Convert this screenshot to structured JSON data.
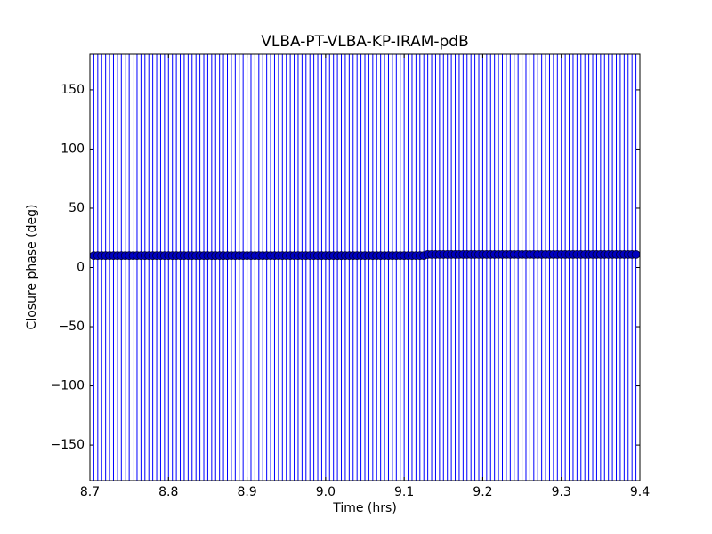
{
  "chart_data": {
    "type": "errorbar",
    "title": "VLBA-PT-VLBA-KP-IRAM-pdB",
    "xlabel": "Time (hrs)",
    "ylabel": "Closure phase (deg)",
    "color": "#0000ff",
    "marker_color": "#0000bf",
    "xlim": [
      8.7,
      9.4
    ],
    "ylim": [
      -180,
      180
    ],
    "xticks": [
      8.7,
      8.8,
      8.9,
      {
        "value": 9,
        "label": "9.0"
      },
      9.1,
      9.2,
      9.3,
      9.4
    ],
    "yticks": [
      {
        "value": -150,
        "label": "−150"
      },
      {
        "value": -100,
        "label": "−100"
      },
      {
        "value": -50,
        "label": "−50"
      },
      0,
      50,
      100,
      150
    ],
    "yerr": 200,
    "x": [
      8.705,
      8.71,
      8.715,
      8.72,
      8.725,
      8.73,
      8.735,
      8.74,
      8.745,
      8.75,
      8.755,
      8.76,
      8.765,
      8.77,
      8.775,
      8.78,
      8.785,
      8.79,
      8.795,
      8.8,
      8.805,
      8.81,
      8.815,
      8.82,
      8.825,
      8.83,
      8.835,
      8.84,
      8.845,
      8.85,
      8.855,
      8.86,
      8.865,
      8.87,
      8.875,
      8.88,
      8.885,
      8.89,
      8.895,
      8.9,
      8.905,
      8.91,
      8.915,
      8.92,
      8.925,
      8.93,
      8.935,
      8.94,
      8.945,
      8.95,
      8.955,
      8.96,
      8.965,
      8.97,
      8.975,
      8.98,
      8.985,
      8.99,
      8.995,
      9.0,
      9.005,
      9.01,
      9.015,
      9.02,
      9.025,
      9.03,
      9.035,
      9.04,
      9.045,
      9.05,
      9.055,
      9.06,
      9.065,
      9.07,
      9.075,
      9.08,
      9.085,
      9.09,
      9.095,
      9.1,
      9.105,
      9.11,
      9.115,
      9.12,
      9.125,
      9.13,
      9.135,
      9.14,
      9.145,
      9.15,
      9.155,
      9.16,
      9.165,
      9.17,
      9.175,
      9.18,
      9.185,
      9.19,
      9.195,
      9.2,
      9.205,
      9.21,
      9.215,
      9.22,
      9.225,
      9.23,
      9.235,
      9.24,
      9.245,
      9.25,
      9.255,
      9.26,
      9.265,
      9.27,
      9.275,
      9.28,
      9.285,
      9.29,
      9.295,
      9.3,
      9.305,
      9.31,
      9.315,
      9.32,
      9.325,
      9.33,
      9.335,
      9.34,
      9.345,
      9.35,
      9.355,
      9.36,
      9.365,
      9.37,
      9.375,
      9.38,
      9.385,
      9.39,
      9.395
    ],
    "values": [
      10,
      10,
      10,
      10,
      10,
      10,
      10,
      10,
      10,
      10,
      10,
      10,
      10,
      10,
      10,
      10,
      10,
      10,
      10,
      10,
      10,
      10,
      10,
      10,
      10,
      10,
      10,
      10,
      10,
      10,
      10,
      10,
      10,
      10,
      10,
      10,
      10,
      10,
      10,
      10,
      10,
      10,
      10,
      10,
      10,
      10,
      10,
      10,
      10,
      10,
      10,
      10,
      10,
      10,
      10,
      10,
      10,
      10,
      10,
      10,
      10,
      10,
      10,
      10,
      10,
      10,
      10,
      10,
      10,
      10,
      10,
      10,
      10,
      10,
      10,
      10,
      10,
      10,
      10,
      10,
      10,
      10,
      10,
      10,
      10,
      11,
      11,
      11,
      11,
      11,
      11,
      11,
      11,
      11,
      11,
      11,
      11,
      11,
      11,
      11,
      11,
      11,
      11,
      11,
      11,
      11,
      11,
      11,
      11,
      11,
      11,
      11,
      11,
      11,
      11,
      11,
      11,
      11,
      11,
      11,
      11,
      11,
      11,
      11,
      11,
      11,
      11,
      11,
      11,
      11,
      11,
      11,
      11,
      11,
      11,
      11,
      11,
      11,
      11
    ]
  }
}
